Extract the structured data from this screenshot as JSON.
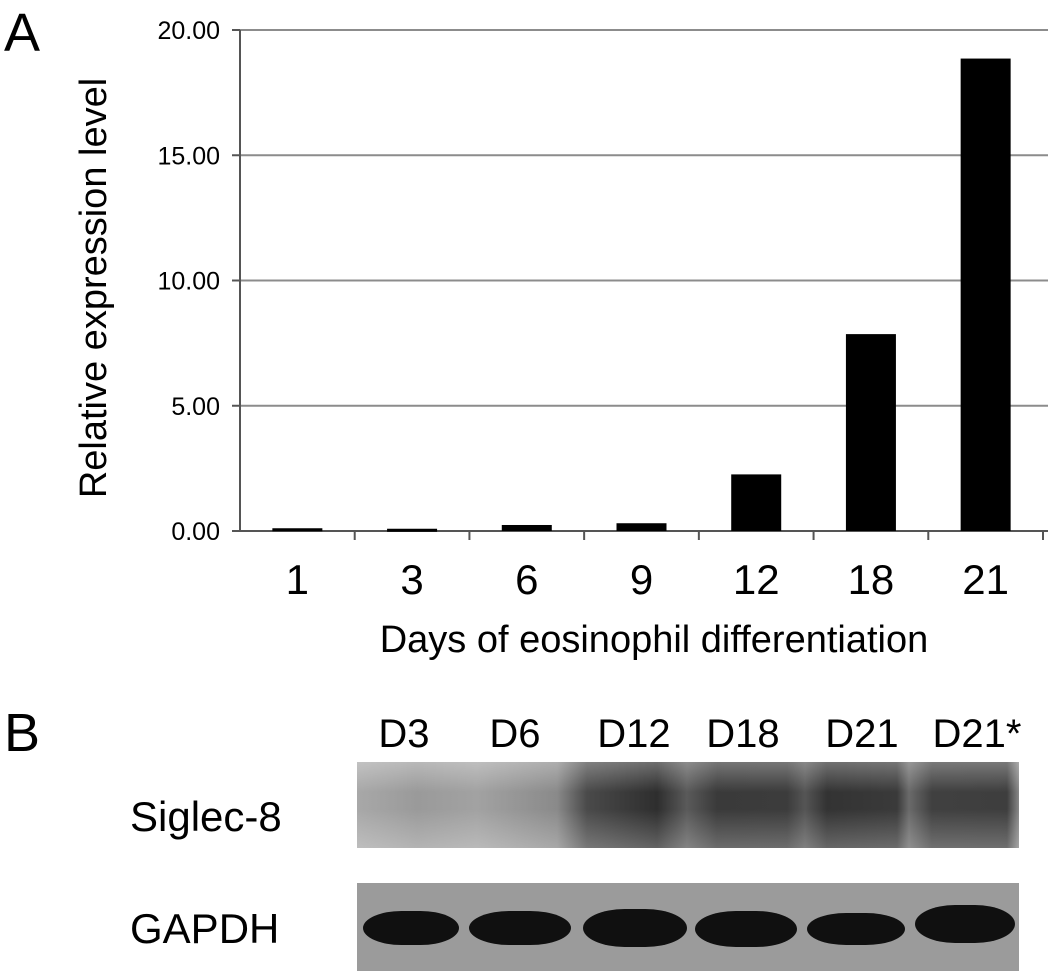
{
  "panel_a_letter": "A",
  "panel_b_letter": "B",
  "chart_data": {
    "type": "bar",
    "categories": [
      "1",
      "3",
      "6",
      "9",
      "12",
      "18",
      "21"
    ],
    "values": [
      0.05,
      0.03,
      0.18,
      0.25,
      2.2,
      7.8,
      18.8
    ],
    "title": "",
    "xlabel": "Days of eosinophil differentiation",
    "ylabel": "Relative expression level",
    "ylim": [
      0,
      20
    ],
    "yticks": [
      "0.00",
      "5.00",
      "10.00",
      "15.00",
      "20.00"
    ],
    "grid": true,
    "bar_color": "#000000",
    "grid_color": "#8c8c8c"
  },
  "blot": {
    "lanes": [
      "D3",
      "D6",
      "D12",
      "D18",
      "D21",
      "D21*"
    ],
    "rows": [
      "Siglec-8",
      "GAPDH"
    ]
  }
}
